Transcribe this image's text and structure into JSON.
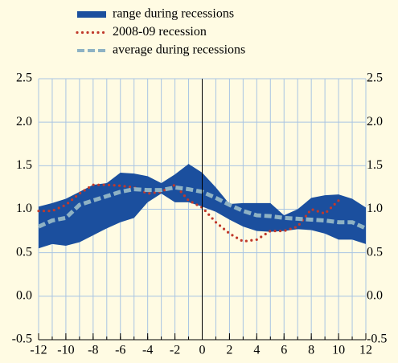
{
  "chart_data": {
    "type": "line",
    "x": [
      -12,
      -11,
      -10,
      -9,
      -8,
      -7,
      -6,
      -5,
      -4,
      -3,
      -2,
      -1,
      0,
      1,
      2,
      3,
      4,
      5,
      6,
      7,
      8,
      9,
      10,
      11,
      12
    ],
    "series": [
      {
        "name": "range during recessions",
        "type": "range",
        "color": "#1b4f9e",
        "high": [
          1.03,
          1.07,
          1.12,
          1.2,
          1.28,
          1.3,
          1.42,
          1.41,
          1.38,
          1.3,
          1.4,
          1.52,
          1.42,
          1.25,
          1.06,
          1.07,
          1.07,
          1.07,
          0.93,
          1.0,
          1.13,
          1.16,
          1.17,
          1.12,
          1.02
        ],
        "low": [
          0.55,
          0.6,
          0.58,
          0.62,
          0.7,
          0.78,
          0.85,
          0.9,
          1.08,
          1.18,
          1.08,
          1.08,
          1.03,
          0.97,
          0.88,
          0.8,
          0.75,
          0.74,
          0.75,
          0.77,
          0.76,
          0.72,
          0.65,
          0.65,
          0.6
        ]
      },
      {
        "name": "2008-09 recession",
        "type": "dotted",
        "color": "#c0392b",
        "values": [
          0.98,
          0.98,
          1.05,
          1.18,
          1.28,
          1.28,
          1.27,
          1.25,
          1.18,
          1.2,
          1.28,
          1.1,
          1.02,
          0.85,
          0.72,
          0.63,
          0.65,
          0.75,
          0.75,
          0.8,
          1.0,
          0.95,
          1.1,
          null,
          null
        ]
      },
      {
        "name": "average during recessions",
        "type": "dashed",
        "color": "#8eb2c4",
        "values": [
          0.8,
          0.87,
          0.9,
          1.05,
          1.1,
          1.15,
          1.2,
          1.23,
          1.22,
          1.22,
          1.25,
          1.23,
          1.2,
          1.13,
          1.05,
          0.98,
          0.93,
          0.92,
          0.9,
          0.89,
          0.88,
          0.87,
          0.85,
          0.85,
          0.78
        ]
      }
    ],
    "xlim": [
      -12,
      12
    ],
    "xticks": [
      -12,
      -10,
      -8,
      -6,
      -4,
      -2,
      0,
      2,
      4,
      6,
      8,
      10,
      12
    ],
    "ylim": [
      -0.5,
      2.5
    ],
    "yticks": [
      2.5,
      {
        "value": 2.0,
        "label": "2.0"
      },
      1.5,
      {
        "value": 1.0,
        "label": "1.0"
      },
      0.5,
      {
        "value": 0.0,
        "label": "0.0"
      },
      -0.5
    ],
    "y2lim": [
      -0.5,
      2.5
    ],
    "y2ticks": [
      2.5,
      {
        "value": 2.0,
        "label": "2.0"
      },
      1.5,
      {
        "value": 1.0,
        "label": "1.0"
      },
      0.5,
      {
        "value": 0.0,
        "label": "0.0"
      },
      -0.5
    ],
    "grid": true
  }
}
